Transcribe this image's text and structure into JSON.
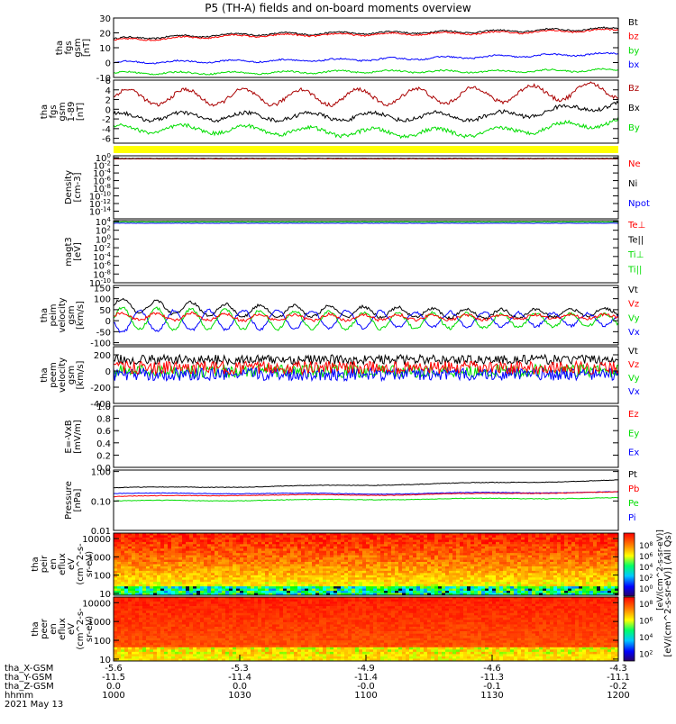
{
  "title": "P5 (TH-A) fields and on-board moments overview",
  "date": "2021 May 13",
  "colors": {
    "black": "#000000",
    "red": "#ff0000",
    "darkred": "#aa0000",
    "green": "#00dd00",
    "blue": "#0000ff",
    "yellow": "#ffff00"
  },
  "chart_data": [
    {
      "type": "line",
      "ylabel": [
        "tha",
        "fgs",
        "gsm",
        "[nT]"
      ],
      "ylim": [
        -10,
        30
      ],
      "ticks": [
        "30",
        "20",
        "10",
        "0",
        "-10"
      ],
      "legend": [
        {
          "label": "Bt",
          "color": "#000000"
        },
        {
          "label": "bz",
          "color": "#ff0000"
        },
        {
          "label": "by",
          "color": "#00dd00"
        },
        {
          "label": "bx",
          "color": "#0000ff"
        }
      ],
      "series": [
        {
          "name": "Bt",
          "color": "#000000",
          "base": [
            16,
            19,
            20,
            21,
            23
          ]
        },
        {
          "name": "bz",
          "color": "#ff0000",
          "base": [
            15,
            18,
            19,
            20,
            22
          ]
        },
        {
          "name": "bx",
          "color": "#0000ff",
          "base": [
            0,
            1,
            2,
            4,
            6
          ]
        },
        {
          "name": "by",
          "color": "#00dd00",
          "base": [
            -7,
            -7,
            -6,
            -6,
            -5
          ]
        }
      ]
    },
    {
      "type": "line",
      "ylabel": [
        "tha",
        "fgs",
        "gsm",
        "1-89",
        "[nT]"
      ],
      "ylim": [
        -7,
        6
      ],
      "ticks": [
        "6",
        "4",
        "2",
        "0",
        "-2",
        "-4",
        "-6"
      ],
      "legend": [
        {
          "label": "Bz",
          "color": "#aa0000"
        },
        {
          "label": "Bx",
          "color": "#000000"
        },
        {
          "label": "By",
          "color": "#00dd00"
        }
      ],
      "series": [
        {
          "name": "Bz",
          "color": "#aa0000",
          "base": [
            2.5,
            2.5,
            2.5,
            3,
            4
          ]
        },
        {
          "name": "Bx",
          "color": "#000000",
          "base": [
            -1.5,
            -1.5,
            -1.5,
            -1.5,
            1
          ]
        },
        {
          "name": "By",
          "color": "#00dd00",
          "base": [
            -4,
            -4.2,
            -4.8,
            -4.8,
            -2.5
          ]
        }
      ]
    },
    {
      "type": "bar",
      "ylabel": [],
      "ylim": [
        0,
        1
      ],
      "ticks": [],
      "legend": []
    },
    {
      "type": "line",
      "ylabel": [
        "Density",
        "[cm-3]"
      ],
      "ylim": [
        -16,
        0.5
      ],
      "log": true,
      "ticks": [
        "10^0",
        "10^-2",
        "10^-4",
        "10^-6",
        "10^-8",
        "10^-10",
        "10^-12",
        "10^-14"
      ],
      "legend": [
        {
          "label": "Ne",
          "color": "#ff0000"
        },
        {
          "label": "Ni",
          "color": "#000000"
        },
        {
          "label": "Npot",
          "color": "#0000ff"
        }
      ],
      "series": [
        {
          "name": "Ne",
          "color": "#ff0000",
          "base": [
            -0.3,
            -0.3,
            -0.3,
            -0.3,
            -0.3
          ]
        },
        {
          "name": "Ni",
          "color": "#000000",
          "base": [
            -0.2,
            -0.2,
            -0.2,
            -0.2,
            -0.2
          ]
        }
      ]
    },
    {
      "type": "line",
      "ylabel": [
        "magt3",
        "[eV]"
      ],
      "ylim": [
        -10,
        4.2
      ],
      "log": true,
      "ticks": [
        "10^4",
        "10^2",
        "10^0",
        "10^-2",
        "10^-4",
        "10^-6",
        "10^-8",
        "10^-10"
      ],
      "legend": [
        {
          "label": "Te⊥",
          "color": "#ff0000"
        },
        {
          "label": "Te||",
          "color": "#000000"
        },
        {
          "label": "Ti⊥",
          "color": "#00dd00"
        },
        {
          "label": "Ti||",
          "color": "#00dd00"
        }
      ],
      "series": [
        {
          "name": "Ti",
          "color": "#00dd00",
          "base": [
            3.9,
            3.9,
            3.9,
            3.9,
            3.9
          ]
        },
        {
          "name": "Te",
          "color": "#0000ff",
          "base": [
            3.6,
            3.6,
            3.6,
            3.6,
            3.6
          ]
        }
      ]
    },
    {
      "type": "line",
      "ylabel": [
        "tha",
        "peim",
        "velocity",
        "gsm",
        "[km/s]"
      ],
      "ylim": [
        -110,
        160
      ],
      "ticks": [
        "150",
        "100",
        "50",
        "0",
        "-50",
        "-100"
      ],
      "legend": [
        {
          "label": "Vt",
          "color": "#000000"
        },
        {
          "label": "Vz",
          "color": "#ff0000"
        },
        {
          "label": "Vy",
          "color": "#00dd00"
        },
        {
          "label": "Vx",
          "color": "#0000ff"
        }
      ],
      "series": [
        {
          "name": "Vt",
          "color": "#000000",
          "base": [
            70,
            45,
            40,
            30,
            40
          ]
        },
        {
          "name": "Vx",
          "color": "#0000ff",
          "base": [
            -5,
            5,
            5,
            5,
            5
          ]
        },
        {
          "name": "Vy",
          "color": "#00dd00",
          "base": [
            10,
            5,
            0,
            0,
            5
          ]
        },
        {
          "name": "Vz",
          "color": "#ff0000",
          "base": [
            20,
            15,
            15,
            15,
            20
          ]
        }
      ]
    },
    {
      "type": "line",
      "ylabel": [
        "tha",
        "peem",
        "velocity",
        "gsm",
        "[km/s]"
      ],
      "ylim": [
        -400,
        300
      ],
      "ticks": [
        "200",
        "0",
        "-200",
        "-400"
      ],
      "legend": [
        {
          "label": "Vt",
          "color": "#000000"
        },
        {
          "label": "Vz",
          "color": "#ff0000"
        },
        {
          "label": "Vy",
          "color": "#00dd00"
        },
        {
          "label": "Vx",
          "color": "#0000ff"
        }
      ],
      "series": [
        {
          "name": "Vt",
          "color": "#000000",
          "base": [
            140,
            140,
            140,
            140,
            140
          ]
        },
        {
          "name": "Vy",
          "color": "#00dd00",
          "base": [
            0,
            0,
            0,
            0,
            0
          ]
        },
        {
          "name": "Vx",
          "color": "#0000ff",
          "base": [
            -40,
            -40,
            -40,
            -40,
            -40
          ]
        },
        {
          "name": "Vz",
          "color": "#ff0000",
          "base": [
            40,
            40,
            40,
            40,
            40
          ]
        }
      ]
    },
    {
      "type": "line",
      "ylabel": [
        "E=-VxB",
        "[mV/m]"
      ],
      "ylim": [
        0,
        1
      ],
      "ticks": [
        "1.0",
        "0.8",
        "0.6",
        "0.4",
        "0.2",
        "0.0"
      ],
      "legend": [
        {
          "label": "Ez",
          "color": "#ff0000"
        },
        {
          "label": "Ey",
          "color": "#00dd00"
        },
        {
          "label": "Ex",
          "color": "#0000ff"
        }
      ],
      "series": []
    },
    {
      "type": "line",
      "ylabel": [
        "Pressure",
        "[nPa]"
      ],
      "ylim": [
        -2,
        0.05
      ],
      "log": true,
      "ticks": [
        "1.00",
        "0.10",
        "0.01"
      ],
      "legend": [
        {
          "label": "Pt",
          "color": "#000000"
        },
        {
          "label": "Pb",
          "color": "#ff0000"
        },
        {
          "label": "Pe",
          "color": "#00dd00"
        },
        {
          "label": "Pi",
          "color": "#0000ff"
        }
      ],
      "series": [
        {
          "name": "Pt",
          "color": "#000000",
          "base": [
            -0.55,
            -0.52,
            -0.46,
            -0.38,
            -0.3
          ]
        },
        {
          "name": "Pi",
          "color": "#0000ff",
          "base": [
            -0.75,
            -0.74,
            -0.76,
            -0.72,
            -0.7
          ]
        },
        {
          "name": "Pb",
          "color": "#ff0000",
          "base": [
            -0.85,
            -0.8,
            -0.8,
            -0.75,
            -0.7
          ]
        },
        {
          "name": "Pe",
          "color": "#00dd00",
          "base": [
            -1.0,
            -0.98,
            -0.95,
            -0.92,
            -0.9
          ]
        }
      ]
    },
    {
      "type": "heatmap",
      "ylabel": [
        "tha",
        "peir",
        "en",
        "eflux",
        "eV",
        "(cm^2-s-",
        "sr-eV)"
      ],
      "ylim": [
        0.9,
        4.3
      ],
      "log": true,
      "ticks": [
        "10000",
        "1000",
        "100",
        "10"
      ],
      "legend": []
    },
    {
      "type": "heatmap",
      "ylabel": [
        "tha",
        "peer",
        "en",
        "eflux",
        "eV",
        "(cm^2-s-",
        "sr-eV)"
      ],
      "ylim": [
        0.9,
        4.3
      ],
      "log": true,
      "ticks": [
        "10000",
        "1000",
        "100",
        "10"
      ],
      "legend": []
    }
  ],
  "colorbar": {
    "label": "[eV/(cm^2-s-sr-eV)] (All Qs)",
    "overlap_label": "[eV/(cm^2-s-sr-eV)]",
    "top_ticks": [
      "10^8",
      "10^6",
      "10^4",
      "10^2",
      "10^0"
    ],
    "bottom_ticks": [
      "10^8",
      "10^6",
      "10^4",
      "10^2"
    ]
  },
  "x_axis": {
    "rows": [
      {
        "label": "tha_X-GSM",
        "values": [
          "-5.6",
          "-5.3",
          "-4.9",
          "-4.6",
          "-4.3"
        ]
      },
      {
        "label": "tha_Y-GSM",
        "values": [
          "-11.5",
          "-11.4",
          "-11.4",
          "-11.3",
          "-11.1"
        ]
      },
      {
        "label": "tha_Z-GSM",
        "values": [
          "0.0",
          "0.0",
          "-0.0",
          "-0.1",
          "-0.2"
        ]
      },
      {
        "label": "hhmm",
        "values": [
          "1000",
          "1030",
          "1100",
          "1130",
          "1200"
        ]
      }
    ]
  }
}
